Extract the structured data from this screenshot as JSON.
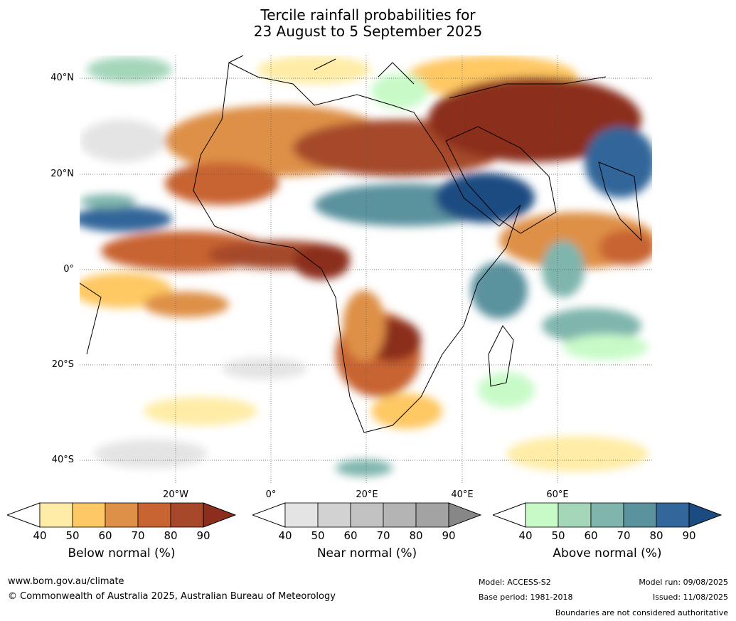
{
  "title": {
    "line1": "Tercile rainfall probabilities for",
    "line2": "23 August to 5 September 2025"
  },
  "axes": {
    "lat_labels": [
      "40°N",
      "20°N",
      "0°",
      "20°S",
      "40°S"
    ],
    "lon_labels": [
      "20°W",
      "0°",
      "20°E",
      "40°E",
      "60°E"
    ]
  },
  "colorbars": [
    {
      "title": "Below normal (%)",
      "ticks": [
        "40",
        "50",
        "60",
        "70",
        "80",
        "90"
      ],
      "colors": [
        "#ffeca6",
        "#fec864",
        "#de9046",
        "#c86432",
        "#a64829",
        "#8c2d1e"
      ]
    },
    {
      "title": "Near normal (%)",
      "ticks": [
        "40",
        "50",
        "60",
        "70",
        "80",
        "90"
      ],
      "colors": [
        "#e4e4e4",
        "#d2d2d2",
        "#c2c2c2",
        "#b4b4b4",
        "#a3a3a3",
        "#878787"
      ]
    },
    {
      "title": "Above normal (%)",
      "ticks": [
        "40",
        "50",
        "60",
        "70",
        "80",
        "90"
      ],
      "colors": [
        "#c8fac8",
        "#a4d6ba",
        "#7fb5ad",
        "#5a929e",
        "#33669a",
        "#1a4c82"
      ]
    }
  ],
  "footer": {
    "url": "www.bom.gov.au/climate",
    "copyright": "© Commonwealth of Australia 2025, Australian Bureau of Meteorology",
    "model": "Model: ACCESS-S2",
    "base_period": "Base period: 1981-2018",
    "model_run": "Model run: 09/08/2025",
    "issued": "Issued: 11/08/2025",
    "disclaimer": "Boundaries are not considered authoritative"
  }
}
